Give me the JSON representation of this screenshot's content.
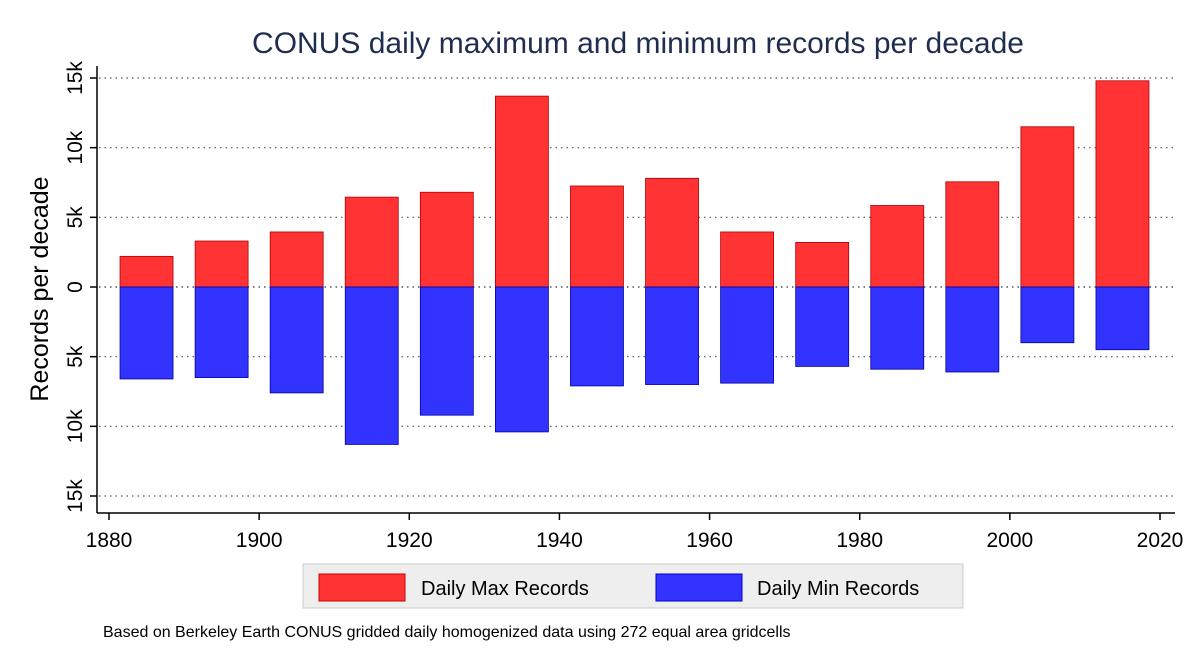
{
  "chart_data": {
    "type": "bar",
    "title": "CONUS daily maximum and minimum records per decade",
    "xlabel": "",
    "ylabel": "Records per decade",
    "x": [
      1885,
      1895,
      1905,
      1915,
      1925,
      1935,
      1945,
      1955,
      1965,
      1975,
      1985,
      1995,
      2005,
      2015
    ],
    "series": [
      {
        "name": "Daily Max Records",
        "color": "#ff3333",
        "values": [
          2200,
          3300,
          3950,
          6450,
          6800,
          13700,
          7250,
          7800,
          3950,
          3200,
          5850,
          7550,
          11500,
          14800
        ]
      },
      {
        "name": "Daily Min Records",
        "color": "#3333ff",
        "values": [
          -6600,
          -6500,
          -7600,
          -11300,
          -9200,
          -10400,
          -7100,
          -7000,
          -6900,
          -5700,
          -5900,
          -6100,
          -4000,
          -4500
        ]
      }
    ],
    "xlim": [
      1877,
      2022
    ],
    "ylim": [
      -16000,
      16000
    ],
    "x_ticks": [
      1880,
      1900,
      1920,
      1940,
      1960,
      1980,
      2000,
      2020
    ],
    "x_tick_labels": [
      "1880",
      "1900",
      "1920",
      "1940",
      "1960",
      "1980",
      "2000",
      "2020"
    ],
    "y_ticks": [
      15000,
      10000,
      5000,
      0,
      -5000,
      -10000,
      -15000
    ],
    "y_tick_labels": [
      "15k",
      "10k",
      "5k",
      "0",
      "5k",
      "10k",
      "15k"
    ],
    "grid": true,
    "legend_position": "bottom",
    "note": "Based on Berkeley Earth CONUS gridded daily homogenized data using 272 equal area gridcells"
  }
}
